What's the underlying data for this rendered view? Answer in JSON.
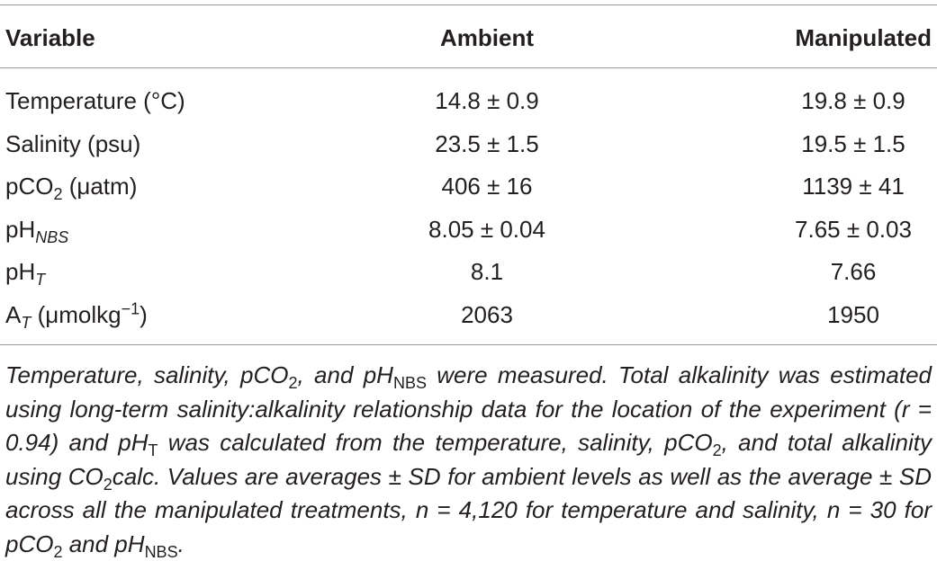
{
  "table": {
    "header": [
      "Variable",
      "Ambient",
      "Manipulated"
    ],
    "rows": [
      {
        "label": [
          "Temperature (°C)"
        ],
        "ambient": "14.8 ± 0.9",
        "manipulated": "19.8 ± 0.9"
      },
      {
        "label": [
          "Salinity (psu)"
        ],
        "ambient": "23.5 ± 1.5",
        "manipulated": "19.5 ± 1.5"
      },
      {
        "label": [
          "pCO",
          "2",
          " (μatm)"
        ],
        "ambient": "406 ± 16",
        "manipulated": "1139 ± 41"
      },
      {
        "label": [
          "pH",
          "NBS"
        ],
        "ambient": "8.05 ± 0.04",
        "manipulated": "7.65 ± 0.03"
      },
      {
        "label": [
          "pH",
          "T"
        ],
        "ambient": "8.1",
        "manipulated": "7.66"
      },
      {
        "label": [
          "A",
          "T",
          " (μmolkg",
          "−1",
          ")"
        ],
        "ambient": "2063",
        "manipulated": "1950"
      }
    ],
    "caption": [
      "Temperature, salinity, pCO",
      "2",
      ", and pH",
      "NBS",
      " were measured. Total alkalinity was estimated using long-term salinity:alkalinity relationship data for the location of the experiment (r = 0.94) and pH",
      "T",
      " was calculated from the temperature, salinity, pCO",
      "2",
      ", and total alkalinity using CO",
      "2",
      "calc. Values are averages ± SD for ambient levels as well as the average ± SD across all the manipulated treatments, n = 4,120 for temperature and salinity, n = 30 for pCO",
      "2",
      " and pH",
      "NBS",
      "."
    ]
  }
}
